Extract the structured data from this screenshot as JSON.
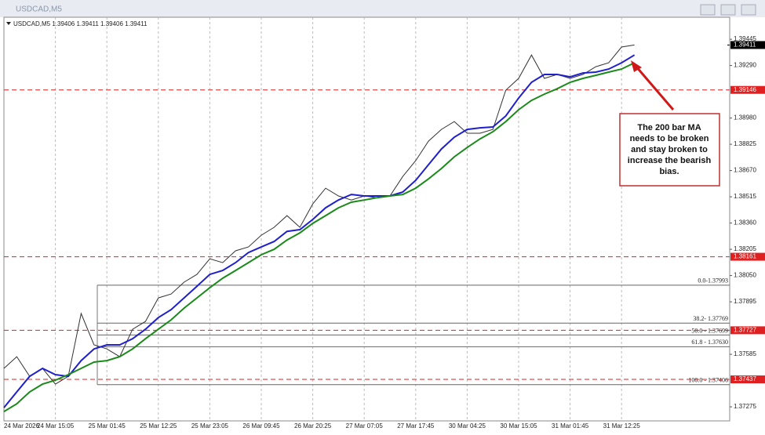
{
  "window_title": "USDCAD,M5",
  "chart_data": {
    "type": "line",
    "header": "USDCAD,M5  1.39406 1.39411 1.39406 1.39411",
    "categories": [
      "24 Mar 2026",
      null,
      null,
      null,
      "24 Mar 15:05",
      null,
      null,
      null,
      "25 Mar 01:45",
      null,
      null,
      null,
      "25 Mar 12:25",
      null,
      null,
      null,
      "25 Mar 23:05",
      null,
      null,
      null,
      "26 Mar 09:45",
      null,
      null,
      null,
      "26 Mar 20:25",
      null,
      null,
      null,
      "27 Mar 07:05",
      null,
      null,
      null,
      "27 Mar 17:45",
      null,
      null,
      null,
      "30 Mar 04:25",
      null,
      null,
      null,
      "30 Mar 15:05",
      null,
      null,
      null,
      "31 Mar 01:45",
      null,
      null,
      null,
      "31 Mar 12:25",
      null
    ],
    "series": [
      {
        "color": "#333333",
        "values": [
          1.37502,
          1.37571,
          1.37455,
          1.37502,
          1.37409,
          1.37455,
          1.37826,
          1.37641,
          1.37617,
          1.37571,
          1.37733,
          1.37779,
          1.37918,
          1.37941,
          1.38011,
          1.38057,
          1.38149,
          1.38126,
          1.38196,
          1.38219,
          1.38288,
          1.38335,
          1.38404,
          1.38335,
          1.38473,
          1.38566,
          1.3852,
          1.38496,
          1.3852,
          1.3851,
          1.3852,
          1.38635,
          1.38728,
          1.38844,
          1.38913,
          1.38959,
          1.3889,
          1.3889,
          1.38913,
          1.39144,
          1.39214,
          1.39352,
          1.39214,
          1.39237,
          1.39214,
          1.39237,
          1.39283,
          1.39306,
          1.39399,
          1.39411
        ]
      },
      {
        "color": "#1f1fcc",
        "values": [
          1.3727,
          1.37363,
          1.37455,
          1.37502,
          1.37465,
          1.37455,
          1.37548,
          1.37617,
          1.37641,
          1.37641,
          1.37677,
          1.37733,
          1.37802,
          1.37849,
          1.37918,
          1.37987,
          1.38057,
          1.3808,
          1.38126,
          1.38186,
          1.38219,
          1.38251,
          1.38311,
          1.38321,
          1.38381,
          1.3845,
          1.38496,
          1.38529,
          1.3852,
          1.3852,
          1.3852,
          1.38543,
          1.38612,
          1.38705,
          1.38797,
          1.38867,
          1.38913,
          1.38922,
          1.38927,
          1.38992,
          1.39098,
          1.39191,
          1.39237,
          1.39237,
          1.39223,
          1.39246,
          1.39251,
          1.39269,
          1.39306,
          1.39352
        ]
      },
      {
        "color": "#1a8a1a",
        "values": [
          1.37247,
          1.37293,
          1.37363,
          1.37409,
          1.37432,
          1.37465,
          1.37502,
          1.37539,
          1.37548,
          1.37571,
          1.37617,
          1.37677,
          1.37733,
          1.37789,
          1.37858,
          1.37918,
          1.37978,
          1.38034,
          1.3808,
          1.38126,
          1.38173,
          1.38205,
          1.3826,
          1.38302,
          1.38358,
          1.38404,
          1.3845,
          1.38483,
          1.38496,
          1.3851,
          1.3852,
          1.38529,
          1.38566,
          1.38621,
          1.38682,
          1.38751,
          1.38806,
          1.38857,
          1.38899,
          1.38959,
          1.39029,
          1.39084,
          1.39121,
          1.39153,
          1.39191,
          1.39214,
          1.39232,
          1.39251,
          1.39269,
          1.39306
        ]
      }
    ],
    "ylim": [
      1.37192,
      1.39575
    ],
    "yticks": [
      1.39445,
      {
        "value": 1.3929,
        "label": "1.39290"
      },
      {
        "value": 1.3898,
        "label": "1.38980"
      },
      1.38825,
      {
        "value": 1.3867,
        "label": "1.38670"
      },
      1.38515,
      {
        "value": 1.3836,
        "label": "1.38360"
      },
      1.38205,
      {
        "value": 1.3805,
        "label": "1.38050"
      },
      1.37895,
      1.37585,
      1.37275
    ],
    "current_price": 1.39411,
    "levels": [
      1.39146,
      1.38161,
      1.37727,
      1.37437
    ],
    "level_color": "#e02020",
    "fibonacci": [
      {
        "value": 1.37993,
        "label": "0.0-1.37993"
      },
      {
        "value": 1.37769,
        "label": "38.2- 1.37769"
      },
      {
        "value": 1.37699,
        "label": "50.0 - 1.37699"
      },
      {
        "value": 1.3763,
        "label": "61.8 - 1.37630"
      },
      {
        "value": 1.37406,
        "label": "100.0 - 1.37406"
      }
    ],
    "annotation": [
      "The 200 bar MA",
      "needs to be broken",
      "and stay broken to",
      "increase the bearish",
      "bias."
    ]
  }
}
